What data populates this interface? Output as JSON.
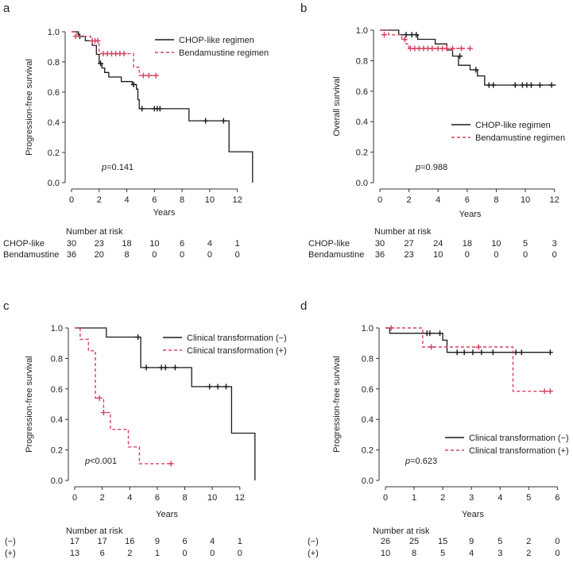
{
  "figure": {
    "bg": "#ffffff",
    "colors": {
      "solid": "#1a1a1a",
      "dashed": "#d6405e"
    }
  },
  "chart_data": [
    {
      "type": "line",
      "panel": "a",
      "ylabel": "Progression-free survival",
      "xlabel": "Years",
      "xlim": [
        0,
        13.4
      ],
      "ylim": [
        0,
        1.0
      ],
      "xticks": [
        0,
        2,
        4,
        6,
        8,
        10,
        12
      ],
      "yticks": [
        0.0,
        0.2,
        0.4,
        0.6,
        0.8,
        1.0
      ],
      "ytick_labels": [
        "0.0",
        "0.2",
        "0.4",
        "0.6",
        "0.8",
        "1.0"
      ],
      "p_prefix": "p",
      "p_text": "=0.141",
      "legend_position": "top-right",
      "series": [
        {
          "name": "CHOP-like regimen",
          "style": "solid",
          "steps": [
            [
              0,
              1.0
            ],
            [
              0.5,
              0.97
            ],
            [
              1.0,
              0.94
            ],
            [
              1.5,
              0.91
            ],
            [
              1.8,
              0.85
            ],
            [
              2.0,
              0.79
            ],
            [
              2.2,
              0.76
            ],
            [
              2.4,
              0.73
            ],
            [
              2.7,
              0.7
            ],
            [
              3.6,
              0.67
            ],
            [
              4.4,
              0.65
            ],
            [
              4.7,
              0.62
            ],
            [
              4.8,
              0.55
            ],
            [
              4.9,
              0.49
            ],
            [
              8.5,
              0.41
            ],
            [
              11.4,
              0.205
            ],
            [
              13.1,
              0.0
            ]
          ],
          "end": 13.1,
          "censors": [
            [
              0.6,
              0.97
            ],
            [
              2.1,
              0.79
            ],
            [
              4.5,
              0.65
            ],
            [
              5.1,
              0.49
            ],
            [
              6.0,
              0.49
            ],
            [
              6.2,
              0.49
            ],
            [
              6.4,
              0.49
            ],
            [
              9.7,
              0.41
            ],
            [
              11.0,
              0.41
            ]
          ]
        },
        {
          "name": "Bendamustine regimen",
          "style": "dashed",
          "steps": [
            [
              0,
              1.0
            ],
            [
              0.4,
              0.97
            ],
            [
              1.4,
              0.94
            ],
            [
              2.0,
              0.855
            ],
            [
              4.5,
              0.765
            ],
            [
              4.9,
              0.71
            ]
          ],
          "end": 6.3,
          "censors": [
            [
              0.3,
              0.97
            ],
            [
              1.5,
              0.94
            ],
            [
              1.7,
              0.94
            ],
            [
              1.9,
              0.94
            ],
            [
              2.3,
              0.855
            ],
            [
              2.6,
              0.855
            ],
            [
              2.9,
              0.855
            ],
            [
              3.2,
              0.855
            ],
            [
              3.5,
              0.855
            ],
            [
              3.8,
              0.855
            ],
            [
              5.2,
              0.71
            ],
            [
              5.6,
              0.71
            ],
            [
              6.1,
              0.71
            ]
          ]
        }
      ],
      "risk": {
        "title": "Number at risk",
        "rows": [
          {
            "label": "CHOP-like",
            "values": [
              30,
              23,
              18,
              10,
              6,
              4,
              1
            ]
          },
          {
            "label": "Bendamustine",
            "values": [
              36,
              20,
              8,
              0,
              0,
              0,
              0
            ]
          }
        ]
      }
    },
    {
      "type": "line",
      "panel": "b",
      "ylabel": "Overall survival",
      "xlabel": "Years",
      "xlim": [
        0,
        12.4
      ],
      "ylim": [
        0,
        1.0
      ],
      "xticks": [
        0,
        2,
        4,
        6,
        8,
        10,
        12
      ],
      "yticks": [
        0.0,
        0.2,
        0.4,
        0.6,
        0.8,
        1.0
      ],
      "ytick_labels": [
        "0.0",
        "0.2",
        "0.4",
        "0.6",
        "0.8",
        "1.0"
      ],
      "p_prefix": "p",
      "p_text": "=0.988",
      "legend_position": "bottom-right",
      "series": [
        {
          "name": "CHOP-like regimen",
          "style": "solid",
          "steps": [
            [
              0,
              1.0
            ],
            [
              1.3,
              0.97
            ],
            [
              2.6,
              0.94
            ],
            [
              3.8,
              0.91
            ],
            [
              4.6,
              0.87
            ],
            [
              5.0,
              0.83
            ],
            [
              5.4,
              0.77
            ],
            [
              6.2,
              0.74
            ],
            [
              6.7,
              0.7
            ],
            [
              7.2,
              0.64
            ]
          ],
          "end": 12.1,
          "censors": [
            [
              1.8,
              0.97
            ],
            [
              2.2,
              0.97
            ],
            [
              2.5,
              0.97
            ],
            [
              5.5,
              0.83
            ],
            [
              6.6,
              0.74
            ],
            [
              7.5,
              0.64
            ],
            [
              7.8,
              0.64
            ],
            [
              9.3,
              0.64
            ],
            [
              9.8,
              0.64
            ],
            [
              10.1,
              0.64
            ],
            [
              10.4,
              0.64
            ],
            [
              11.0,
              0.64
            ],
            [
              11.8,
              0.64
            ]
          ]
        },
        {
          "name": "Bendamustine regimen",
          "style": "dashed",
          "steps": [
            [
              0,
              1.0
            ],
            [
              0.6,
              0.97
            ],
            [
              1.5,
              0.94
            ],
            [
              1.8,
              0.91
            ],
            [
              2.0,
              0.88
            ]
          ],
          "end": 6.3,
          "censors": [
            [
              0.3,
              0.97
            ],
            [
              1.7,
              0.94
            ],
            [
              2.1,
              0.88
            ],
            [
              2.4,
              0.88
            ],
            [
              2.7,
              0.88
            ],
            [
              3.0,
              0.88
            ],
            [
              3.3,
              0.88
            ],
            [
              3.6,
              0.88
            ],
            [
              4.0,
              0.88
            ],
            [
              4.3,
              0.88
            ],
            [
              4.6,
              0.88
            ],
            [
              5.0,
              0.88
            ],
            [
              5.6,
              0.88
            ],
            [
              6.2,
              0.88
            ]
          ]
        }
      ],
      "risk": {
        "title": "Number at risk",
        "rows": [
          {
            "label": "CHOP-like",
            "values": [
              30,
              27,
              24,
              18,
              10,
              5,
              3
            ]
          },
          {
            "label": "Bendamustine",
            "values": [
              36,
              23,
              10,
              0,
              0,
              0,
              0
            ]
          }
        ]
      }
    },
    {
      "type": "line",
      "panel": "c",
      "ylabel": "Progression-free survival",
      "xlabel": "Years",
      "xlim": [
        0,
        13.4
      ],
      "ylim": [
        0,
        1.0
      ],
      "xticks": [
        0,
        2,
        4,
        6,
        8,
        10,
        12
      ],
      "yticks": [
        0.0,
        0.2,
        0.4,
        0.6,
        0.8,
        1.0
      ],
      "ytick_labels": [
        "0.0",
        "0.2",
        "0.4",
        "0.6",
        "0.8",
        "1.0"
      ],
      "p_prefix": "p",
      "p_text": "<0.001",
      "legend_position": "top-right",
      "series": [
        {
          "name": "Clinical transformation (−)",
          "style": "solid",
          "steps": [
            [
              0,
              1.0
            ],
            [
              2.3,
              0.94
            ],
            [
              4.8,
              0.74
            ],
            [
              8.5,
              0.615
            ],
            [
              11.4,
              0.31
            ],
            [
              13.1,
              0.0
            ]
          ],
          "end": 13.1,
          "censors": [
            [
              4.6,
              0.94
            ],
            [
              5.2,
              0.74
            ],
            [
              6.3,
              0.74
            ],
            [
              6.6,
              0.74
            ],
            [
              7.3,
              0.74
            ],
            [
              9.8,
              0.615
            ],
            [
              10.4,
              0.615
            ],
            [
              11.0,
              0.615
            ]
          ]
        },
        {
          "name": "Clinical transformation (+)",
          "style": "dashed",
          "steps": [
            [
              0,
              1.0
            ],
            [
              0.4,
              0.925
            ],
            [
              1.0,
              0.85
            ],
            [
              1.5,
              0.54
            ],
            [
              2.1,
              0.445
            ],
            [
              2.6,
              0.335
            ],
            [
              3.9,
              0.22
            ],
            [
              4.7,
              0.11
            ]
          ],
          "end": 7.1,
          "censors": [
            [
              1.8,
              0.54
            ],
            [
              2.1,
              0.445
            ],
            [
              7.0,
              0.11
            ]
          ]
        }
      ],
      "risk": {
        "title": "Number at risk",
        "rows": [
          {
            "label": "(−)",
            "values": [
              17,
              17,
              16,
              9,
              6,
              4,
              1
            ]
          },
          {
            "label": "(+)",
            "values": [
              13,
              6,
              2,
              1,
              0,
              0,
              0
            ]
          }
        ]
      }
    },
    {
      "type": "line",
      "panel": "d",
      "ylabel": "Progression-free survival",
      "xlabel": "Years",
      "xlim": [
        0,
        6.1
      ],
      "ylim": [
        0,
        1.0
      ],
      "xticks": [
        0,
        1,
        2,
        3,
        4,
        5,
        6
      ],
      "yticks": [
        0.0,
        0.2,
        0.4,
        0.6,
        0.8,
        1.0
      ],
      "ytick_labels": [
        "0.0",
        "0.2",
        "0.4",
        "0.6",
        "0.8",
        "1.0"
      ],
      "p_prefix": "p",
      "p_text": "=0.623",
      "legend_position": "bottom-right",
      "series": [
        {
          "name": "Clinical transformation (−)",
          "style": "solid",
          "steps": [
            [
              0,
              1.0
            ],
            [
              0.15,
              0.965
            ],
            [
              2.0,
              0.92
            ],
            [
              2.15,
              0.84
            ]
          ],
          "end": 5.8,
          "censors": [
            [
              1.45,
              0.965
            ],
            [
              1.55,
              0.965
            ],
            [
              1.9,
              0.965
            ],
            [
              2.5,
              0.84
            ],
            [
              2.75,
              0.84
            ],
            [
              3.05,
              0.84
            ],
            [
              3.35,
              0.84
            ],
            [
              3.75,
              0.84
            ],
            [
              4.55,
              0.84
            ],
            [
              4.75,
              0.84
            ],
            [
              5.75,
              0.84
            ]
          ]
        },
        {
          "name": "Clinical transformation (+)",
          "style": "dashed",
          "steps": [
            [
              0,
              1.0
            ],
            [
              1.3,
              0.875
            ],
            [
              4.45,
              0.585
            ]
          ],
          "end": 5.8,
          "censors": [
            [
              0.2,
              1.0
            ],
            [
              1.6,
              0.875
            ],
            [
              3.25,
              0.875
            ],
            [
              5.55,
              0.585
            ],
            [
              5.75,
              0.585
            ]
          ]
        }
      ],
      "risk": {
        "title": "Number at risk",
        "rows": [
          {
            "label": "(−)",
            "values": [
              26,
              25,
              15,
              9,
              5,
              2,
              0
            ]
          },
          {
            "label": "(+)",
            "values": [
              10,
              8,
              5,
              4,
              3,
              2,
              0
            ]
          }
        ]
      }
    }
  ]
}
